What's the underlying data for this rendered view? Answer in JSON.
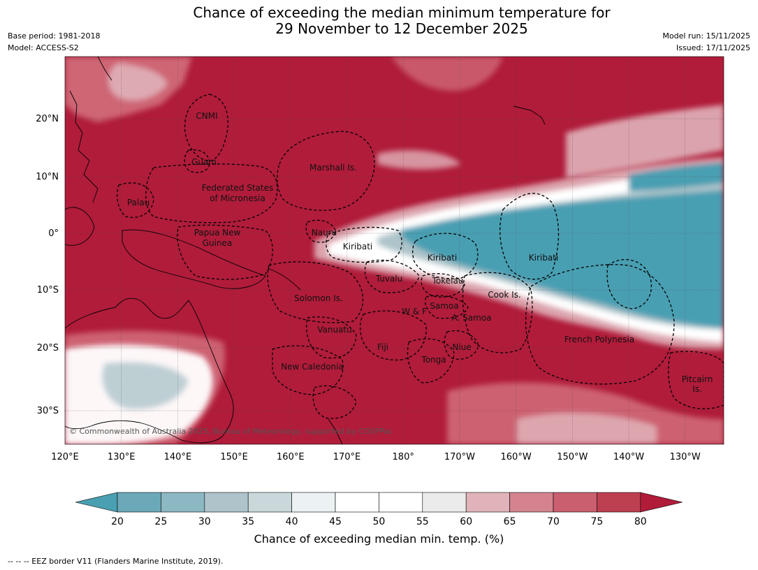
{
  "title": {
    "line1": "Chance of exceeding the median minimum temperature for",
    "line2": "29 November to 12 December 2025"
  },
  "meta_left": {
    "base_period": "Base period: 1981-2018",
    "model": "Model: ACCESS-S2"
  },
  "meta_right": {
    "model_run": "Model run: 15/11/2025",
    "issued": "Issued: 17/11/2025"
  },
  "colors": {
    "warm_high": "#b01c3a",
    "warm_mid": "#d4737f",
    "warm_low": "#e0b3ba",
    "neutral": "#ffffff",
    "cool_low": "#aec4ca",
    "cool_high": "#4a9fb2"
  },
  "axes": {
    "lon_labels": [
      "120°E",
      "130°E",
      "140°E",
      "150°E",
      "160°E",
      "170°E",
      "180°",
      "170°W",
      "160°W",
      "150°W",
      "140°W",
      "130°W"
    ],
    "lat_labels": [
      "20°N",
      "10°N",
      "0°",
      "10°S",
      "20°S",
      "30°S"
    ]
  },
  "regions": [
    {
      "name": "CNMI"
    },
    {
      "name": "Guam"
    },
    {
      "name": "Marshall Is."
    },
    {
      "name": "Federated States"
    },
    {
      "name": "of Micronesia"
    },
    {
      "name": "Palau"
    },
    {
      "name": "Papua New"
    },
    {
      "name": "Guinea"
    },
    {
      "name": "Nauru"
    },
    {
      "name": "Kiribati"
    },
    {
      "name": "Kiribati"
    },
    {
      "name": "Kiribati"
    },
    {
      "name": "Tuvalu"
    },
    {
      "name": "Tokelau"
    },
    {
      "name": "Cook Is."
    },
    {
      "name": "Solomon Is."
    },
    {
      "name": "Samoa"
    },
    {
      "name": "W & F"
    },
    {
      "name": "A. Samoa"
    },
    {
      "name": "Vanuatu"
    },
    {
      "name": "Fiji"
    },
    {
      "name": "Niue"
    },
    {
      "name": "French Polynesia"
    },
    {
      "name": "Tonga"
    },
    {
      "name": "New Caledonia"
    },
    {
      "name": "Pitcairn"
    },
    {
      "name": "Is."
    }
  ],
  "copyright": "© Commonwealth of Australia 2025, Bureau of Meteorology, supported by COSPPac",
  "colorbar": {
    "ticks": [
      "20",
      "25",
      "30",
      "35",
      "40",
      "45",
      "50",
      "55",
      "60",
      "65",
      "70",
      "75",
      "80"
    ],
    "label": "Chance of exceeding median min. temp. (%)",
    "colors": [
      "#4a9fb2",
      "#6ba8b8",
      "#8bb8c2",
      "#aec4ca",
      "#cbd8db",
      "#ecf2f3",
      "#ffffff",
      "#ffffff",
      "#ecebec",
      "#e0b3ba",
      "#d4838f",
      "#c95f6f",
      "#bd4050",
      "#b01c3a"
    ]
  },
  "footnote": "--  --  -- EEZ border V11 (Flanders Marine Institute, 2019)."
}
